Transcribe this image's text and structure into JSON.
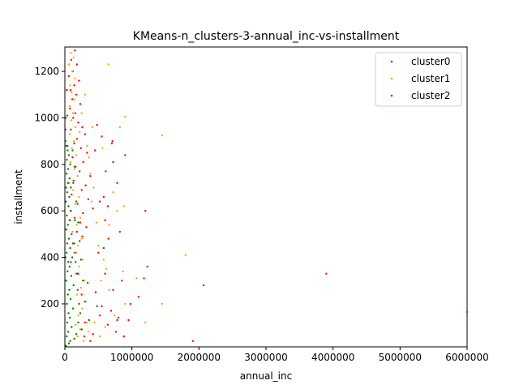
{
  "chart_data": {
    "type": "scatter",
    "title": "KMeans-n_clusters-3-annual_inc-vs-installment",
    "xlabel": "annual_inc",
    "ylabel": "installment",
    "xlim": [
      0,
      6000000
    ],
    "ylim": [
      15,
      1305
    ],
    "xticks": [
      0,
      1000000,
      2000000,
      3000000,
      4000000,
      5000000,
      6000000
    ],
    "xtick_labels": [
      "0",
      "1000000",
      "2000000",
      "3000000",
      "4000000",
      "5000000",
      "6000000"
    ],
    "yticks": [
      200,
      400,
      600,
      800,
      1000,
      1200
    ],
    "ytick_labels": [
      "200",
      "400",
      "600",
      "800",
      "1000",
      "1200"
    ],
    "grid": false,
    "legend_position": "top-right",
    "series": [
      {
        "name": "cluster0",
        "color": "#ff0000",
        "points": [
          [
            150000,
            1290
          ],
          [
            95000,
            1250
          ],
          [
            180000,
            1230
          ],
          [
            120000,
            1200
          ],
          [
            60000,
            1180
          ],
          [
            210000,
            1160
          ],
          [
            140000,
            1140
          ],
          [
            85000,
            1120
          ],
          [
            170000,
            1100
          ],
          [
            110000,
            1080
          ],
          [
            230000,
            1060
          ],
          [
            75000,
            1040
          ],
          [
            155000,
            1020
          ],
          [
            125000,
            1000
          ],
          [
            200000,
            980
          ],
          [
            260000,
            960
          ],
          [
            90000,
            950
          ],
          [
            300000,
            930
          ],
          [
            180000,
            910
          ],
          [
            140000,
            890
          ],
          [
            240000,
            870
          ],
          [
            330000,
            850
          ],
          [
            115000,
            830
          ],
          [
            275000,
            810
          ],
          [
            160000,
            790
          ],
          [
            220000,
            770
          ],
          [
            380000,
            750
          ],
          [
            130000,
            730
          ],
          [
            310000,
            710
          ],
          [
            250000,
            690
          ],
          [
            100000,
            670
          ],
          [
            350000,
            650
          ],
          [
            190000,
            630
          ],
          [
            420000,
            610
          ],
          [
            270000,
            590
          ],
          [
            145000,
            570
          ],
          [
            230000,
            550
          ],
          [
            320000,
            530
          ],
          [
            180000,
            510
          ],
          [
            260000,
            490
          ],
          [
            480000,
            970
          ],
          [
            550000,
            920
          ],
          [
            700000,
            890
          ],
          [
            610000,
            770
          ],
          [
            450000,
            860
          ],
          [
            580000,
            660
          ],
          [
            650000,
            480
          ],
          [
            820000,
            510
          ],
          [
            780000,
            720
          ],
          [
            900000,
            840
          ],
          [
            500000,
            420
          ],
          [
            600000,
            330
          ],
          [
            720000,
            260
          ],
          [
            850000,
            300
          ],
          [
            950000,
            130
          ],
          [
            1200000,
            600
          ],
          [
            1230000,
            360
          ],
          [
            1180000,
            310
          ],
          [
            800000,
            140
          ],
          [
            760000,
            80
          ],
          [
            640000,
            110
          ],
          [
            550000,
            190
          ],
          [
            420000,
            70
          ],
          [
            380000,
            40
          ],
          [
            300000,
            120
          ],
          [
            250000,
            240
          ],
          [
            200000,
            330
          ],
          [
            160000,
            420
          ],
          [
            120000,
            460
          ],
          [
            90000,
            380
          ],
          [
            70000,
            560
          ],
          [
            55000,
            720
          ],
          [
            40000,
            880
          ],
          [
            35000,
            1010
          ],
          [
            30000,
            1120
          ],
          [
            3900000,
            330
          ],
          [
            1910000,
            40
          ],
          [
            1100000,
            230
          ],
          [
            980000,
            200
          ],
          [
            640000,
            620
          ],
          [
            710000,
            900
          ],
          [
            520000,
            150
          ],
          [
            460000,
            250
          ],
          [
            340000,
            290
          ],
          [
            290000,
            60
          ],
          [
            880000,
            60
          ],
          [
            780000,
            130
          ],
          [
            690000,
            170
          ],
          [
            600000,
            560
          ],
          [
            520000,
            640
          ]
        ]
      },
      {
        "name": "cluster1",
        "color": "#ffa500",
        "points": [
          [
            90000,
            1280
          ],
          [
            130000,
            1260
          ],
          [
            60000,
            1230
          ],
          [
            110000,
            1200
          ],
          [
            150000,
            1170
          ],
          [
            80000,
            1140
          ],
          [
            100000,
            1110
          ],
          [
            140000,
            1080
          ],
          [
            70000,
            1050
          ],
          [
            120000,
            1020
          ],
          [
            95000,
            990
          ],
          [
            160000,
            960
          ],
          [
            75000,
            930
          ],
          [
            135000,
            900
          ],
          [
            105000,
            870
          ],
          [
            170000,
            840
          ],
          [
            85000,
            810
          ],
          [
            145000,
            780
          ],
          [
            190000,
            750
          ],
          [
            65000,
            720
          ],
          [
            125000,
            690
          ],
          [
            210000,
            660
          ],
          [
            155000,
            630
          ],
          [
            95000,
            600
          ],
          [
            230000,
            570
          ],
          [
            175000,
            540
          ],
          [
            115000,
            510
          ],
          [
            250000,
            480
          ],
          [
            195000,
            450
          ],
          [
            135000,
            420
          ],
          [
            270000,
            390
          ],
          [
            215000,
            360
          ],
          [
            160000,
            330
          ],
          [
            290000,
            300
          ],
          [
            240000,
            270
          ],
          [
            180000,
            240
          ],
          [
            310000,
            210
          ],
          [
            260000,
            180
          ],
          [
            200000,
            150
          ],
          [
            330000,
            120
          ],
          [
            650000,
            1230
          ],
          [
            900000,
            1005
          ],
          [
            1450000,
            925
          ],
          [
            820000,
            960
          ],
          [
            560000,
            870
          ],
          [
            720000,
            680
          ],
          [
            660000,
            540
          ],
          [
            880000,
            620
          ],
          [
            780000,
            600
          ],
          [
            620000,
            350
          ],
          [
            870000,
            340
          ],
          [
            1070000,
            310
          ],
          [
            1800000,
            410
          ],
          [
            1450000,
            200
          ],
          [
            1200000,
            120
          ],
          [
            900000,
            200
          ],
          [
            660000,
            260
          ],
          [
            540000,
            300
          ],
          [
            470000,
            550
          ],
          [
            400000,
            640
          ],
          [
            380000,
            760
          ],
          [
            360000,
            830
          ],
          [
            430000,
            700
          ],
          [
            500000,
            450
          ],
          [
            580000,
            390
          ],
          [
            6000000,
            165
          ],
          [
            740000,
            150
          ],
          [
            600000,
            100
          ],
          [
            520000,
            60
          ],
          [
            440000,
            120
          ],
          [
            350000,
            80
          ],
          [
            280000,
            40
          ],
          [
            230000,
            90
          ],
          [
            190000,
            60
          ],
          [
            160000,
            110
          ],
          [
            300000,
            1100
          ],
          [
            250000,
            1020
          ],
          [
            220000,
            940
          ],
          [
            330000,
            880
          ],
          [
            410000,
            960
          ]
        ]
      },
      {
        "name": "cluster2",
        "color": "#008000",
        "points": [
          [
            20000,
            880
          ],
          [
            40000,
            860
          ],
          [
            60000,
            840
          ],
          [
            30000,
            820
          ],
          [
            80000,
            800
          ],
          [
            50000,
            780
          ],
          [
            25000,
            760
          ],
          [
            70000,
            740
          ],
          [
            45000,
            720
          ],
          [
            90000,
            700
          ],
          [
            35000,
            680
          ],
          [
            65000,
            660
          ],
          [
            15000,
            640
          ],
          [
            55000,
            620
          ],
          [
            85000,
            600
          ],
          [
            30000,
            580
          ],
          [
            75000,
            560
          ],
          [
            45000,
            540
          ],
          [
            20000,
            520
          ],
          [
            100000,
            500
          ],
          [
            60000,
            480
          ],
          [
            35000,
            460
          ],
          [
            80000,
            440
          ],
          [
            25000,
            420
          ],
          [
            110000,
            400
          ],
          [
            50000,
            380
          ],
          [
            70000,
            360
          ],
          [
            40000,
            340
          ],
          [
            95000,
            320
          ],
          [
            20000,
            300
          ],
          [
            130000,
            280
          ],
          [
            65000,
            260
          ],
          [
            45000,
            240
          ],
          [
            85000,
            220
          ],
          [
            30000,
            200
          ],
          [
            120000,
            180
          ],
          [
            55000,
            160
          ],
          [
            75000,
            140
          ],
          [
            35000,
            120
          ],
          [
            100000,
            100
          ],
          [
            50000,
            80
          ],
          [
            25000,
            60
          ],
          [
            80000,
            40
          ],
          [
            60000,
            30
          ],
          [
            15000,
            20
          ],
          [
            140000,
            460
          ],
          [
            160000,
            380
          ],
          [
            180000,
            330
          ],
          [
            150000,
            560
          ],
          [
            170000,
            640
          ],
          [
            125000,
            720
          ],
          [
            145000,
            790
          ],
          [
            115000,
            860
          ],
          [
            190000,
            260
          ],
          [
            210000,
            200
          ],
          [
            230000,
            160
          ],
          [
            200000,
            120
          ],
          [
            250000,
            90
          ],
          [
            170000,
            70
          ],
          [
            140000,
            50
          ],
          [
            720000,
            810
          ],
          [
            580000,
            440
          ],
          [
            480000,
            190
          ],
          [
            2070000,
            280
          ],
          [
            360000,
            130
          ],
          [
            300000,
            210
          ],
          [
            270000,
            300
          ],
          [
            240000,
            390
          ],
          [
            220000,
            470
          ],
          [
            200000,
            550
          ],
          [
            10000,
            950
          ],
          [
            12000,
            1000
          ],
          [
            8000,
            900
          ],
          [
            18000,
            700
          ],
          [
            10000,
            400
          ]
        ]
      }
    ]
  }
}
